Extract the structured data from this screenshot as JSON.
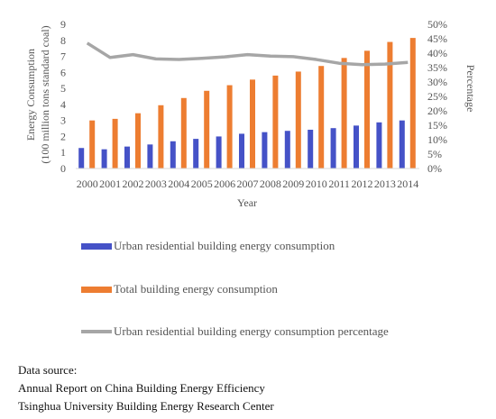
{
  "chart_data": {
    "type": "bar",
    "categories": [
      "2000",
      "2001",
      "2002",
      "2003",
      "2004",
      "2005",
      "2006",
      "2007",
      "2008",
      "2009",
      "2010",
      "2011",
      "2012",
      "2013",
      "2014"
    ],
    "series": [
      {
        "name": "Urban residential building energy consumption",
        "type": "bar",
        "axis": "left",
        "color": "#4552c7",
        "values": [
          1.28,
          1.2,
          1.37,
          1.5,
          1.7,
          1.85,
          2.0,
          2.17,
          2.27,
          2.35,
          2.42,
          2.52,
          2.68,
          2.88,
          3.0
        ]
      },
      {
        "name": "Total building energy consumption",
        "type": "bar",
        "axis": "left",
        "color": "#ed7d31",
        "values": [
          3.0,
          3.1,
          3.45,
          3.95,
          4.4,
          4.85,
          5.2,
          5.55,
          5.8,
          6.05,
          6.4,
          6.9,
          7.35,
          7.9,
          8.15
        ]
      },
      {
        "name": "Urban residential building energy consumption percentage",
        "type": "line",
        "axis": "right",
        "color": "#a6a6a6",
        "values": [
          0.435,
          0.385,
          0.395,
          0.38,
          0.378,
          0.382,
          0.387,
          0.395,
          0.39,
          0.388,
          0.378,
          0.365,
          0.36,
          0.362,
          0.368
        ]
      }
    ],
    "ylabel": "Energy Consumption\n(100 million tons standard coal)",
    "y2label": "Percentage",
    "xlabel": "Year",
    "ylim": [
      0,
      9
    ],
    "yticks": [
      "0",
      "1",
      "2",
      "3",
      "4",
      "5",
      "6",
      "7",
      "8",
      "9"
    ],
    "y2lim": [
      0,
      0.5
    ],
    "y2ticks": [
      "0%",
      "5%",
      "10%",
      "15%",
      "20%",
      "25%",
      "30%",
      "35%",
      "40%",
      "45%",
      "50%"
    ],
    "legend_position": "bottom",
    "grid": false
  },
  "legend": {
    "item1": "Urban residential building energy consumption",
    "item2": "Total building energy consumption",
    "item3": "Urban residential building energy consumption percentage"
  },
  "source": {
    "line1": "Data source:",
    "line2": "Annual Report on China Building Energy Efficiency",
    "line3": "Tsinghua University Building Energy Research Center"
  }
}
